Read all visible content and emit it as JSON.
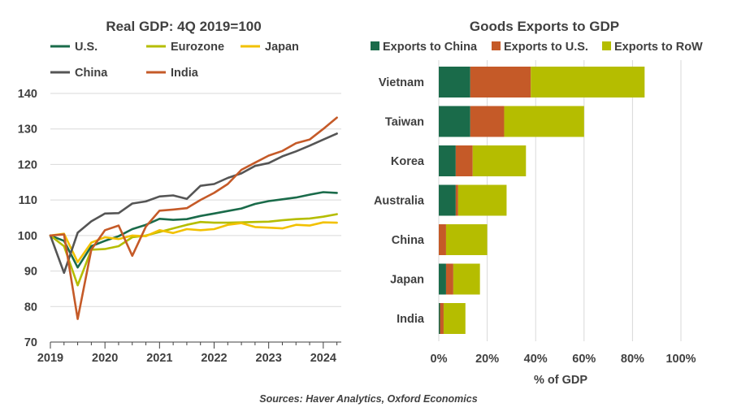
{
  "chart_data": [
    {
      "type": "line",
      "title": "Real GDP: 4Q 2019=100",
      "xlabel": "",
      "ylabel": "",
      "xlim": [
        2019,
        2024.33
      ],
      "ylim": [
        70,
        140
      ],
      "xticks": [
        "2019",
        "2020",
        "2021",
        "2022",
        "2023",
        "2024"
      ],
      "yticks": [
        "70",
        "80",
        "90",
        "100",
        "110",
        "120",
        "130",
        "140"
      ],
      "x": [
        2019.0,
        2019.25,
        2019.5,
        2019.75,
        2020.0,
        2020.25,
        2020.5,
        2020.75,
        2021.0,
        2021.25,
        2021.5,
        2021.75,
        2022.0,
        2022.25,
        2022.5,
        2022.75,
        2023.0,
        2023.25,
        2023.5,
        2023.75,
        2024.0,
        2024.25
      ],
      "series": [
        {
          "name": "U.S.",
          "color": "#1a6b4a",
          "values": [
            100,
            98.5,
            91,
            97,
            98.5,
            99.8,
            101.8,
            103,
            104.7,
            104.4,
            104.6,
            105.5,
            106.2,
            106.9,
            107.6,
            108.9,
            109.7,
            110.2,
            110.7,
            111.5,
            112.2,
            112
          ]
        },
        {
          "name": "Eurozone",
          "color": "#b5bd00",
          "values": [
            100,
            97,
            86,
            96,
            96.2,
            97,
            99.5,
            100,
            101,
            102,
            103,
            103.8,
            103.6,
            103.6,
            103.7,
            103.8,
            103.9,
            104.3,
            104.6,
            104.8,
            105.3,
            106
          ]
        },
        {
          "name": "Japan",
          "color": "#f2c100",
          "values": [
            100,
            100.5,
            92.5,
            98,
            99.5,
            99,
            100,
            99.8,
            101.5,
            100.7,
            101.8,
            101.5,
            101.8,
            103,
            103.5,
            102.4,
            102.2,
            102,
            103,
            102.8,
            103.7,
            103.6
          ]
        },
        {
          "name": "China",
          "color": "#555555",
          "values": [
            100,
            89.5,
            100.8,
            104,
            106.2,
            106.3,
            109,
            109.6,
            111,
            111.3,
            110.3,
            114,
            114.5,
            116.2,
            117.5,
            119.6,
            120.4,
            122.3,
            123.7,
            125.3,
            127,
            128.7
          ]
        },
        {
          "name": "India",
          "color": "#c55a28",
          "values": [
            100,
            100.3,
            76.5,
            96,
            101.5,
            102.8,
            94.3,
            102.5,
            107,
            107.3,
            107.7,
            110,
            112,
            114.5,
            118.5,
            120.5,
            122.5,
            123.8,
            126,
            127,
            130,
            133.2
          ]
        }
      ]
    },
    {
      "type": "bar",
      "orientation": "horizontal",
      "stacked": true,
      "title": "Goods Exports to GDP",
      "xlabel": "% of GDP",
      "ylabel": "",
      "xlim": [
        0,
        100
      ],
      "xticks": [
        "0%",
        "20%",
        "40%",
        "60%",
        "80%",
        "100%"
      ],
      "categories": [
        "Vietnam",
        "Taiwan",
        "Korea",
        "Australia",
        "China",
        "Japan",
        "India"
      ],
      "series": [
        {
          "name": "Exports to China",
          "color": "#1a6b4a",
          "values": [
            13,
            13,
            7,
            7,
            0,
            3,
            0.5
          ]
        },
        {
          "name": "Exports to U.S.",
          "color": "#c55a28",
          "values": [
            25,
            14,
            7,
            1,
            3,
            3,
            1.5
          ]
        },
        {
          "name": "Exports to RoW",
          "color": "#b5bd00",
          "values": [
            47,
            33,
            22,
            20,
            17,
            11,
            9
          ]
        }
      ]
    }
  ],
  "source": "Sources: Haver Analytics, Oxford Economics"
}
